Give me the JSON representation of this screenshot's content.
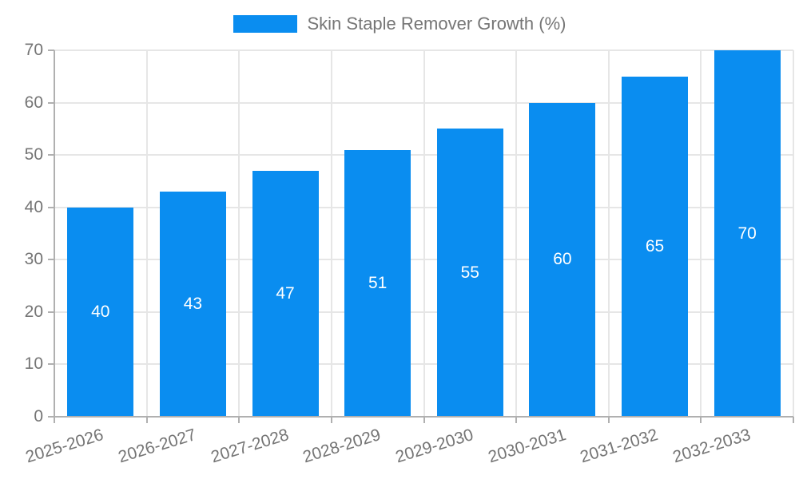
{
  "legend": {
    "label": "Skin Staple Remover Growth (%)"
  },
  "chart_data": {
    "type": "bar",
    "title": "Skin Staple Remover Growth (%)",
    "categories": [
      "2025-2026",
      "2026-2027",
      "2027-2028",
      "2028-2029",
      "2029-2030",
      "2030-2031",
      "2031-2032",
      "2032-2033"
    ],
    "values": [
      40,
      43,
      47,
      51,
      55,
      60,
      65,
      70
    ],
    "xlabel": "",
    "ylabel": "",
    "ylim": [
      0,
      70
    ],
    "yticks": [
      0,
      10,
      20,
      30,
      40,
      50,
      60,
      70
    ],
    "grid": true,
    "legend_position": "top",
    "colors": {
      "bar": "#0a8df0",
      "bar_label": "#ffffff",
      "axis_text": "#757575",
      "gridline": "#e6e6e6",
      "axis_line": "#b0b0b0"
    }
  }
}
